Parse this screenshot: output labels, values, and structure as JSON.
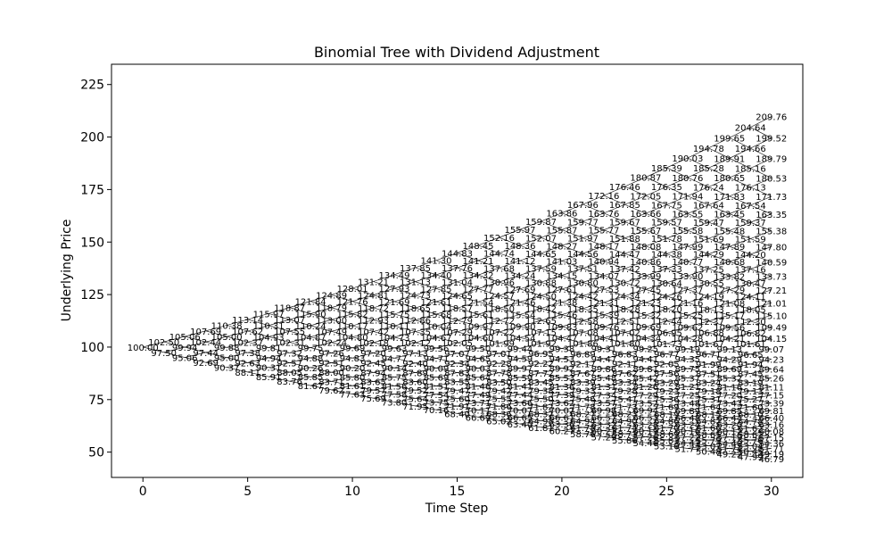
{
  "chart_data": {
    "type": "line",
    "title": "Binomial Tree with Dividend Adjustment",
    "xlabel": "Time Step",
    "ylabel": "Underlying Price",
    "xlim": [
      -1.5,
      31.5
    ],
    "ylim": [
      37.95,
      234.65
    ],
    "xticks": [
      0,
      5,
      10,
      15,
      20,
      25,
      30
    ],
    "yticks": [
      50,
      75,
      100,
      125,
      150,
      175,
      200,
      225
    ],
    "grid": false,
    "legend": "none",
    "edge_color": "#000000",
    "tree": {
      "steps": 30,
      "s0": 100.0,
      "u": 1.025,
      "d": 0.975,
      "decimals": 2
    }
  }
}
